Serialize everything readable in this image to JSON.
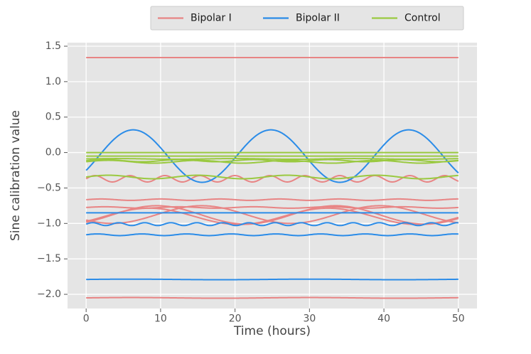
{
  "chart_data": {
    "type": "line",
    "title": "",
    "xlabel": "Time (hours)",
    "ylabel": "Sine calibration value",
    "xlim": [
      -2.5,
      52.5
    ],
    "ylim": [
      -2.2,
      1.55
    ],
    "x_ticks": [
      0,
      10,
      20,
      30,
      40,
      50
    ],
    "x_tick_labels": [
      "0",
      "10",
      "20",
      "30",
      "40",
      "50"
    ],
    "y_ticks": [
      -2.0,
      -1.5,
      -1.0,
      -0.5,
      0.0,
      0.5,
      1.0,
      1.5
    ],
    "y_tick_labels": [
      "−2.0",
      "−1.5",
      "−1.0",
      "−0.5",
      "0.0",
      "0.5",
      "1.0",
      "1.5"
    ],
    "grid": true,
    "legend_position": "top-right",
    "x_range": [
      0,
      50
    ],
    "colors": {
      "bipolar_1": "#e88484",
      "bipolar_2": "#2b8ce8",
      "control": "#9ac940",
      "background": "#e5e5e5",
      "grid": "#ffffff"
    },
    "groups": [
      {
        "name": "Bipolar I",
        "color": "#e88484",
        "series": [
          {
            "offset": 1.34,
            "amplitude": 0.0,
            "period": 24
          },
          {
            "offset": -0.37,
            "amplitude": 0.045,
            "period": 4.7
          },
          {
            "offset": -0.665,
            "amplitude": 0.01,
            "period": 8
          },
          {
            "offset": -0.775,
            "amplitude": 0.01,
            "period": 10
          },
          {
            "offset": -0.88,
            "amplitude": 0.13,
            "period": 24,
            "phase_hours": 3.5
          },
          {
            "offset": -0.875,
            "amplitude": 0.125,
            "period": 24,
            "phase_hours": 9.5
          },
          {
            "offset": -0.9,
            "amplitude": 0.115,
            "period": 24,
            "phase_hours": 2.5
          },
          {
            "offset": -2.05,
            "amplitude": 0.005,
            "period": 24
          }
        ]
      },
      {
        "name": "Bipolar II",
        "color": "#2b8ce8",
        "series": [
          {
            "offset": -0.05,
            "amplitude": 0.37,
            "period": 18.5,
            "phase_hours": 1.7
          },
          {
            "offset": -0.85,
            "amplitude": 0.0,
            "period": 24
          },
          {
            "offset": -1.01,
            "amplitude": 0.02,
            "period": 3.5
          },
          {
            "offset": -1.16,
            "amplitude": 0.012,
            "period": 6
          },
          {
            "offset": -1.79,
            "amplitude": 0.004,
            "period": 24
          }
        ]
      },
      {
        "name": "Control",
        "color": "#9ac940",
        "series": [
          {
            "offset": 0.0,
            "amplitude": 0.0,
            "period": 24
          },
          {
            "offset": -0.05,
            "amplitude": 0.0,
            "period": 24
          },
          {
            "offset": -0.09,
            "amplitude": 0.005,
            "period": 16
          },
          {
            "offset": -0.13,
            "amplitude": 0.02,
            "period": 12
          },
          {
            "offset": -0.115,
            "amplitude": 0.015,
            "period": 10
          },
          {
            "offset": -0.345,
            "amplitude": 0.025,
            "period": 12
          }
        ]
      }
    ],
    "legend": [
      "Bipolar I",
      "Bipolar II",
      "Control"
    ]
  }
}
